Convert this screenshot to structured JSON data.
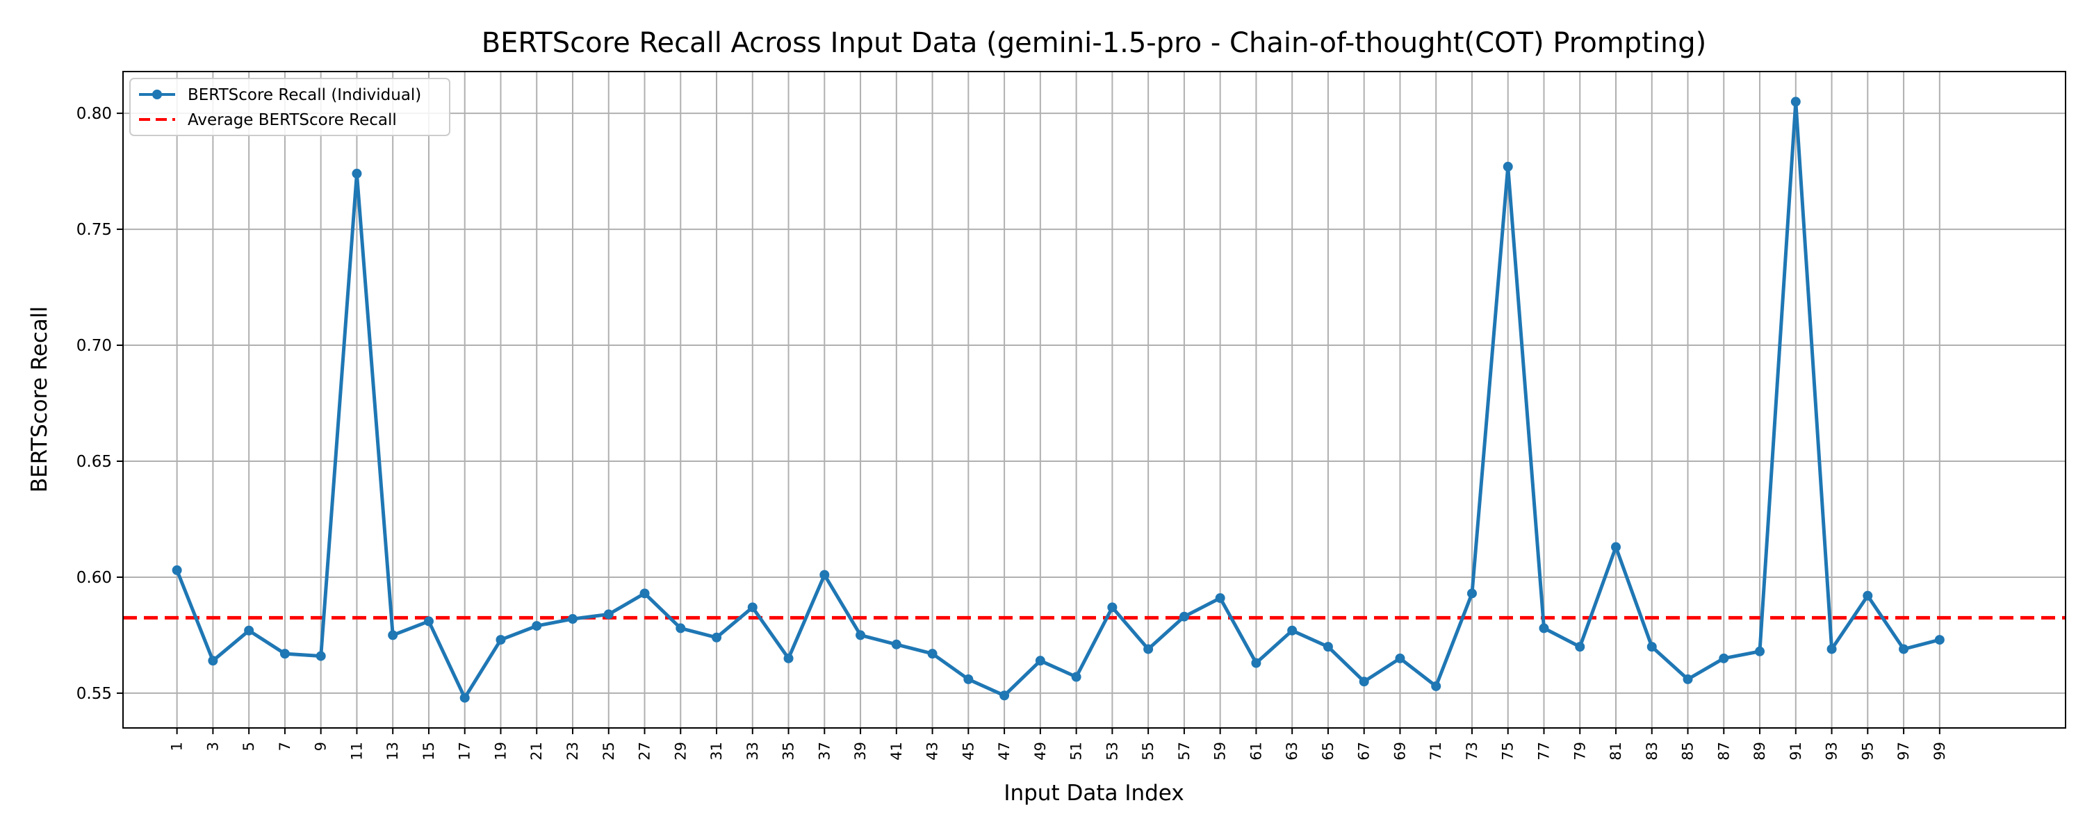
{
  "chart_data": {
    "type": "line",
    "title": "BERTScore Recall Across Input Data (gemini-1.5-pro - Chain-of-thought(COT) Prompting)",
    "xlabel": "Input Data Index",
    "ylabel": "BERTScore Recall",
    "xlim": [
      -1.5,
      52.5
    ],
    "ylim": [
      0.535,
      0.818
    ],
    "grid": true,
    "legend_position": "top-left",
    "categories": [
      "1",
      "3",
      "5",
      "7",
      "9",
      "11",
      "13",
      "15",
      "17",
      "19",
      "21",
      "23",
      "25",
      "27",
      "29",
      "31",
      "33",
      "35",
      "37",
      "39",
      "41",
      "43",
      "45",
      "47",
      "49",
      "51",
      "53",
      "55",
      "57",
      "59",
      "61",
      "63",
      "65",
      "67",
      "69",
      "71",
      "73",
      "75",
      "77",
      "79",
      "81",
      "83",
      "85",
      "87",
      "89",
      "91",
      "93",
      "95",
      "97",
      "99"
    ],
    "yticks": [
      0.55,
      0.6,
      0.65,
      0.7,
      0.75,
      0.8
    ],
    "ytick_labels": [
      "0.55",
      "0.60",
      "0.65",
      "0.70",
      "0.75",
      "0.80"
    ],
    "series": [
      {
        "name": "BERTScore Recall (Individual)",
        "color": "#1f77b4",
        "style": "solid-with-markers",
        "values": [
          0.603,
          0.564,
          0.577,
          0.567,
          0.566,
          0.774,
          0.575,
          0.581,
          0.548,
          0.573,
          0.579,
          0.582,
          0.584,
          0.593,
          0.578,
          0.574,
          0.587,
          0.565,
          0.601,
          0.575,
          0.571,
          0.567,
          0.556,
          0.549,
          0.564,
          0.557,
          0.587,
          0.569,
          0.583,
          0.591,
          0.563,
          0.577,
          0.57,
          0.555,
          0.565,
          0.553,
          0.593,
          0.777,
          0.578,
          0.57,
          0.613,
          0.57,
          0.556,
          0.565,
          0.568,
          0.805,
          0.569,
          0.592,
          0.569,
          0.573
        ]
      },
      {
        "name": "Average BERTScore Recall",
        "color": "#ff0000",
        "style": "dashed",
        "value": 0.5825
      }
    ]
  }
}
